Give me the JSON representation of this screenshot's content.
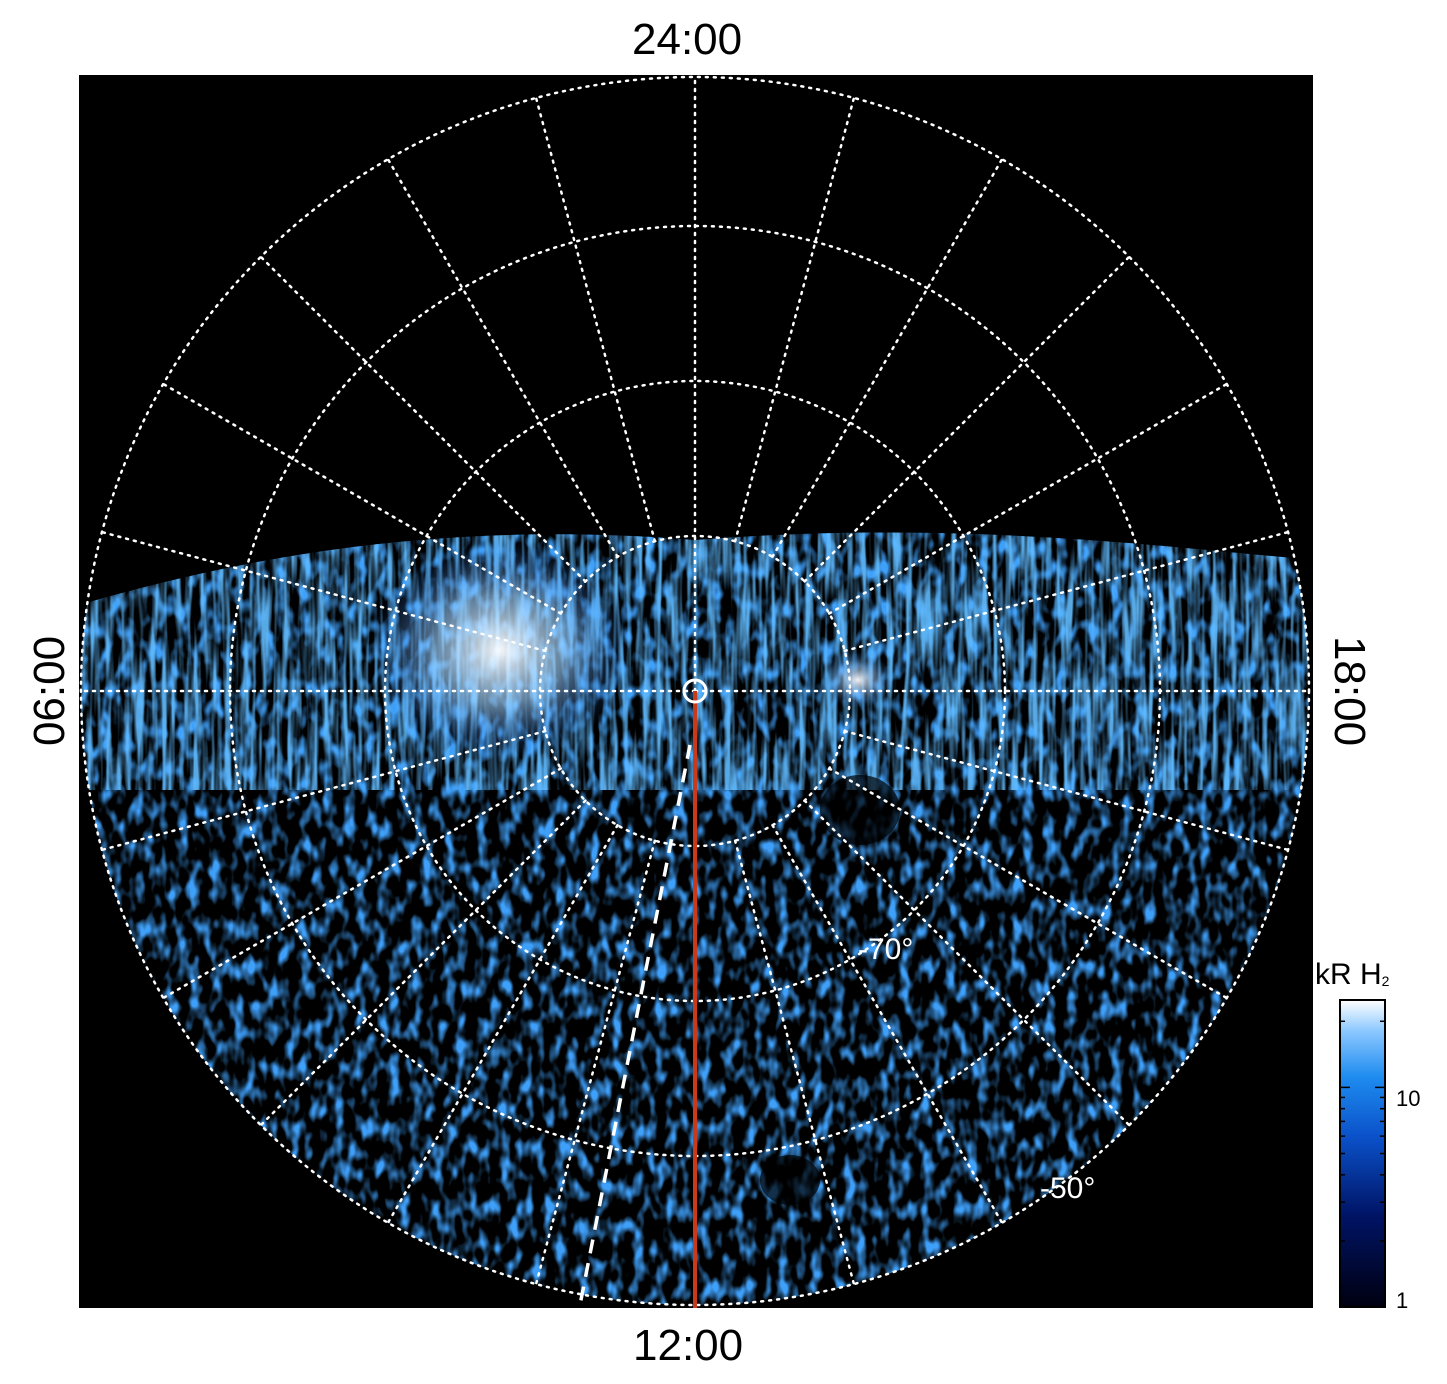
{
  "plot": {
    "local_time_labels": {
      "top": "24:00",
      "bottom": "12:00",
      "left": "06:00",
      "right": "18:00"
    },
    "latitude_labels": [
      "-70°",
      "-50°"
    ],
    "grid": "dotted",
    "background_color": "#000000",
    "meridian_line_color": "#c83a1a",
    "boundary_line_color": "#ffffff"
  },
  "colorbar": {
    "title_main": "kR H",
    "title_sub": "2",
    "tick_labels": [
      "10",
      "1"
    ],
    "colormap": [
      "#000010",
      "#001466",
      "#0a50c8",
      "#1e8cf0",
      "#8cc8ff",
      "#ffffff"
    ]
  }
}
